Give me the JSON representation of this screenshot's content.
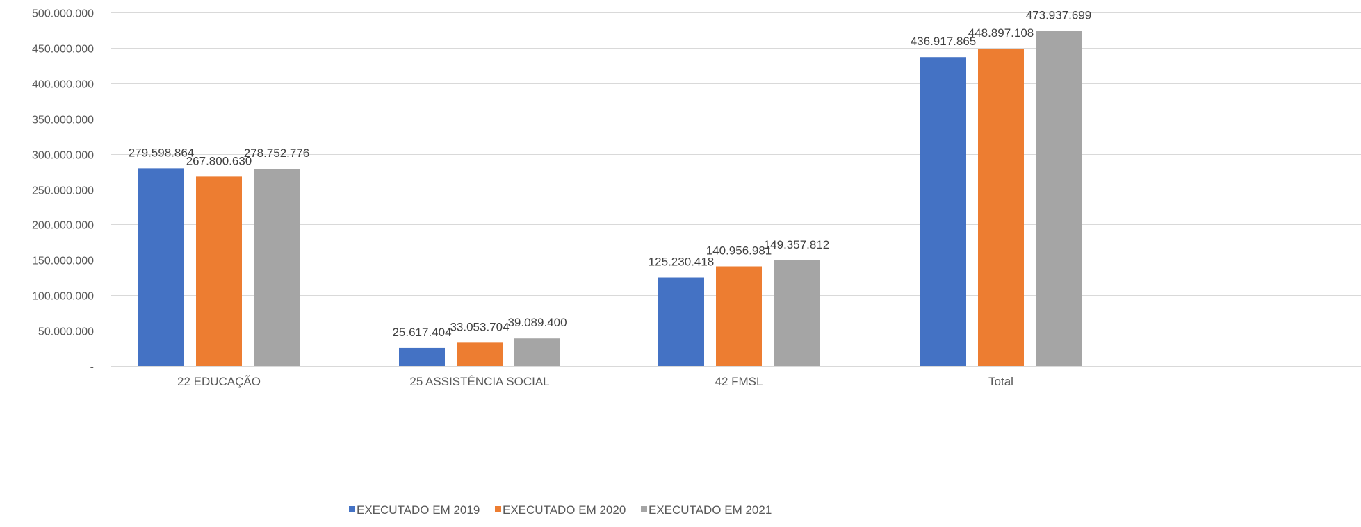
{
  "chart_data": {
    "type": "bar",
    "categories": [
      "22 EDUCAÇÃO",
      "25 ASSISTÊNCIA SOCIAL",
      "42 FMSL",
      "Total"
    ],
    "series": [
      {
        "name": "EXECUTADO EM 2019",
        "color": "#4472C4",
        "values": [
          279598864,
          25617404,
          125230418,
          436917865
        ],
        "labels": [
          "279.598.864",
          "25.617.404",
          "125.230.418",
          "436.917.865"
        ]
      },
      {
        "name": "EXECUTADO EM 2020",
        "color": "#ED7D31",
        "values": [
          267800630,
          33053704,
          140956981,
          448897108
        ],
        "labels": [
          "267.800.630",
          "33.053.704",
          "140.956.981",
          "448.897.108"
        ]
      },
      {
        "name": "EXECUTADO EM 2021",
        "color": "#A5A5A5",
        "values": [
          278752776,
          39089400,
          149357812,
          473937699
        ],
        "labels": [
          "278.752.776",
          "39.089.400",
          "149.357.812",
          "473.937.699"
        ]
      }
    ],
    "ylim": [
      0,
      500000000
    ],
    "yticks": [
      {
        "value": 0,
        "label": "-"
      },
      {
        "value": 50000000,
        "label": "50.000.000"
      },
      {
        "value": 100000000,
        "label": "100.000.000"
      },
      {
        "value": 150000000,
        "label": "150.000.000"
      },
      {
        "value": 200000000,
        "label": "200.000.000"
      },
      {
        "value": 250000000,
        "label": "250.000.000"
      },
      {
        "value": 300000000,
        "label": "300.000.000"
      },
      {
        "value": 350000000,
        "label": "350.000.000"
      },
      {
        "value": 400000000,
        "label": "400.000.000"
      },
      {
        "value": 450000000,
        "label": "450.000.000"
      },
      {
        "value": 500000000,
        "label": "500.000.000"
      }
    ],
    "grid": true,
    "legend_position": "bottom",
    "gridline_color": "#D9D9D9"
  }
}
